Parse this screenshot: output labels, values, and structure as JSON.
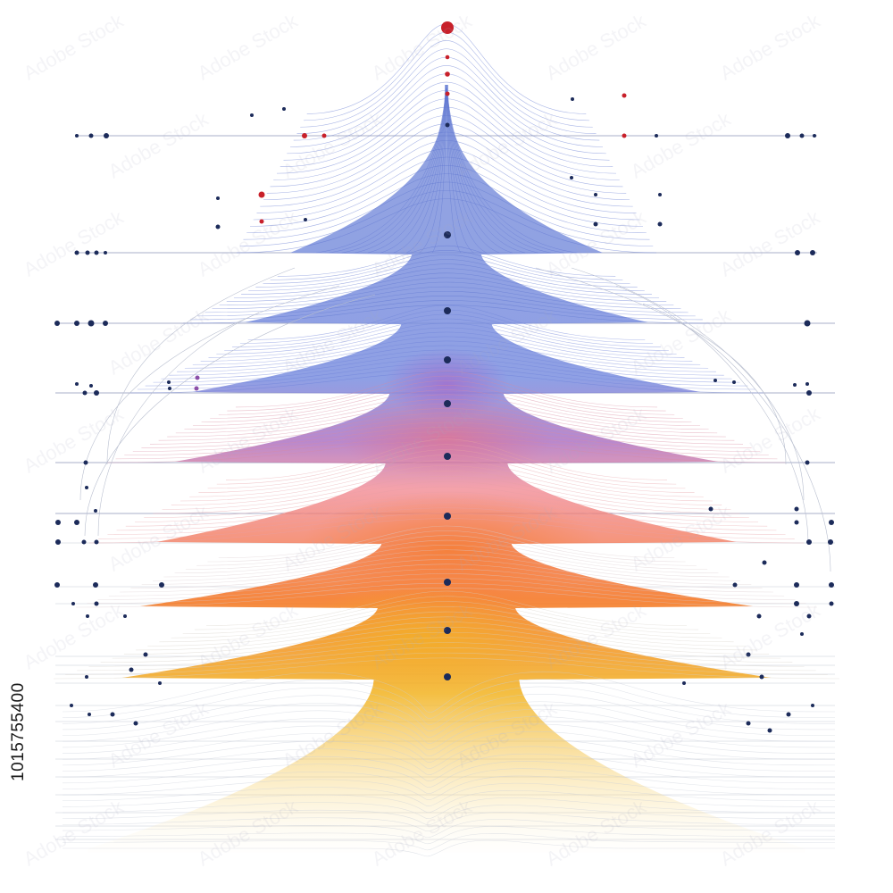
{
  "image": {
    "stock_id": "1015755400",
    "watermark_text": "Adobe Stock"
  },
  "palette": {
    "accent_red": "#c8202a",
    "node_navy": "#1c2b5a",
    "wave_blue": "#6f86d6",
    "wave_purple": "#a86bc0",
    "wave_pink": "#f07a86",
    "wave_orange": "#f57a2a",
    "wave_yellow": "#f2b321",
    "wave_grey": "#c9cdd8"
  }
}
